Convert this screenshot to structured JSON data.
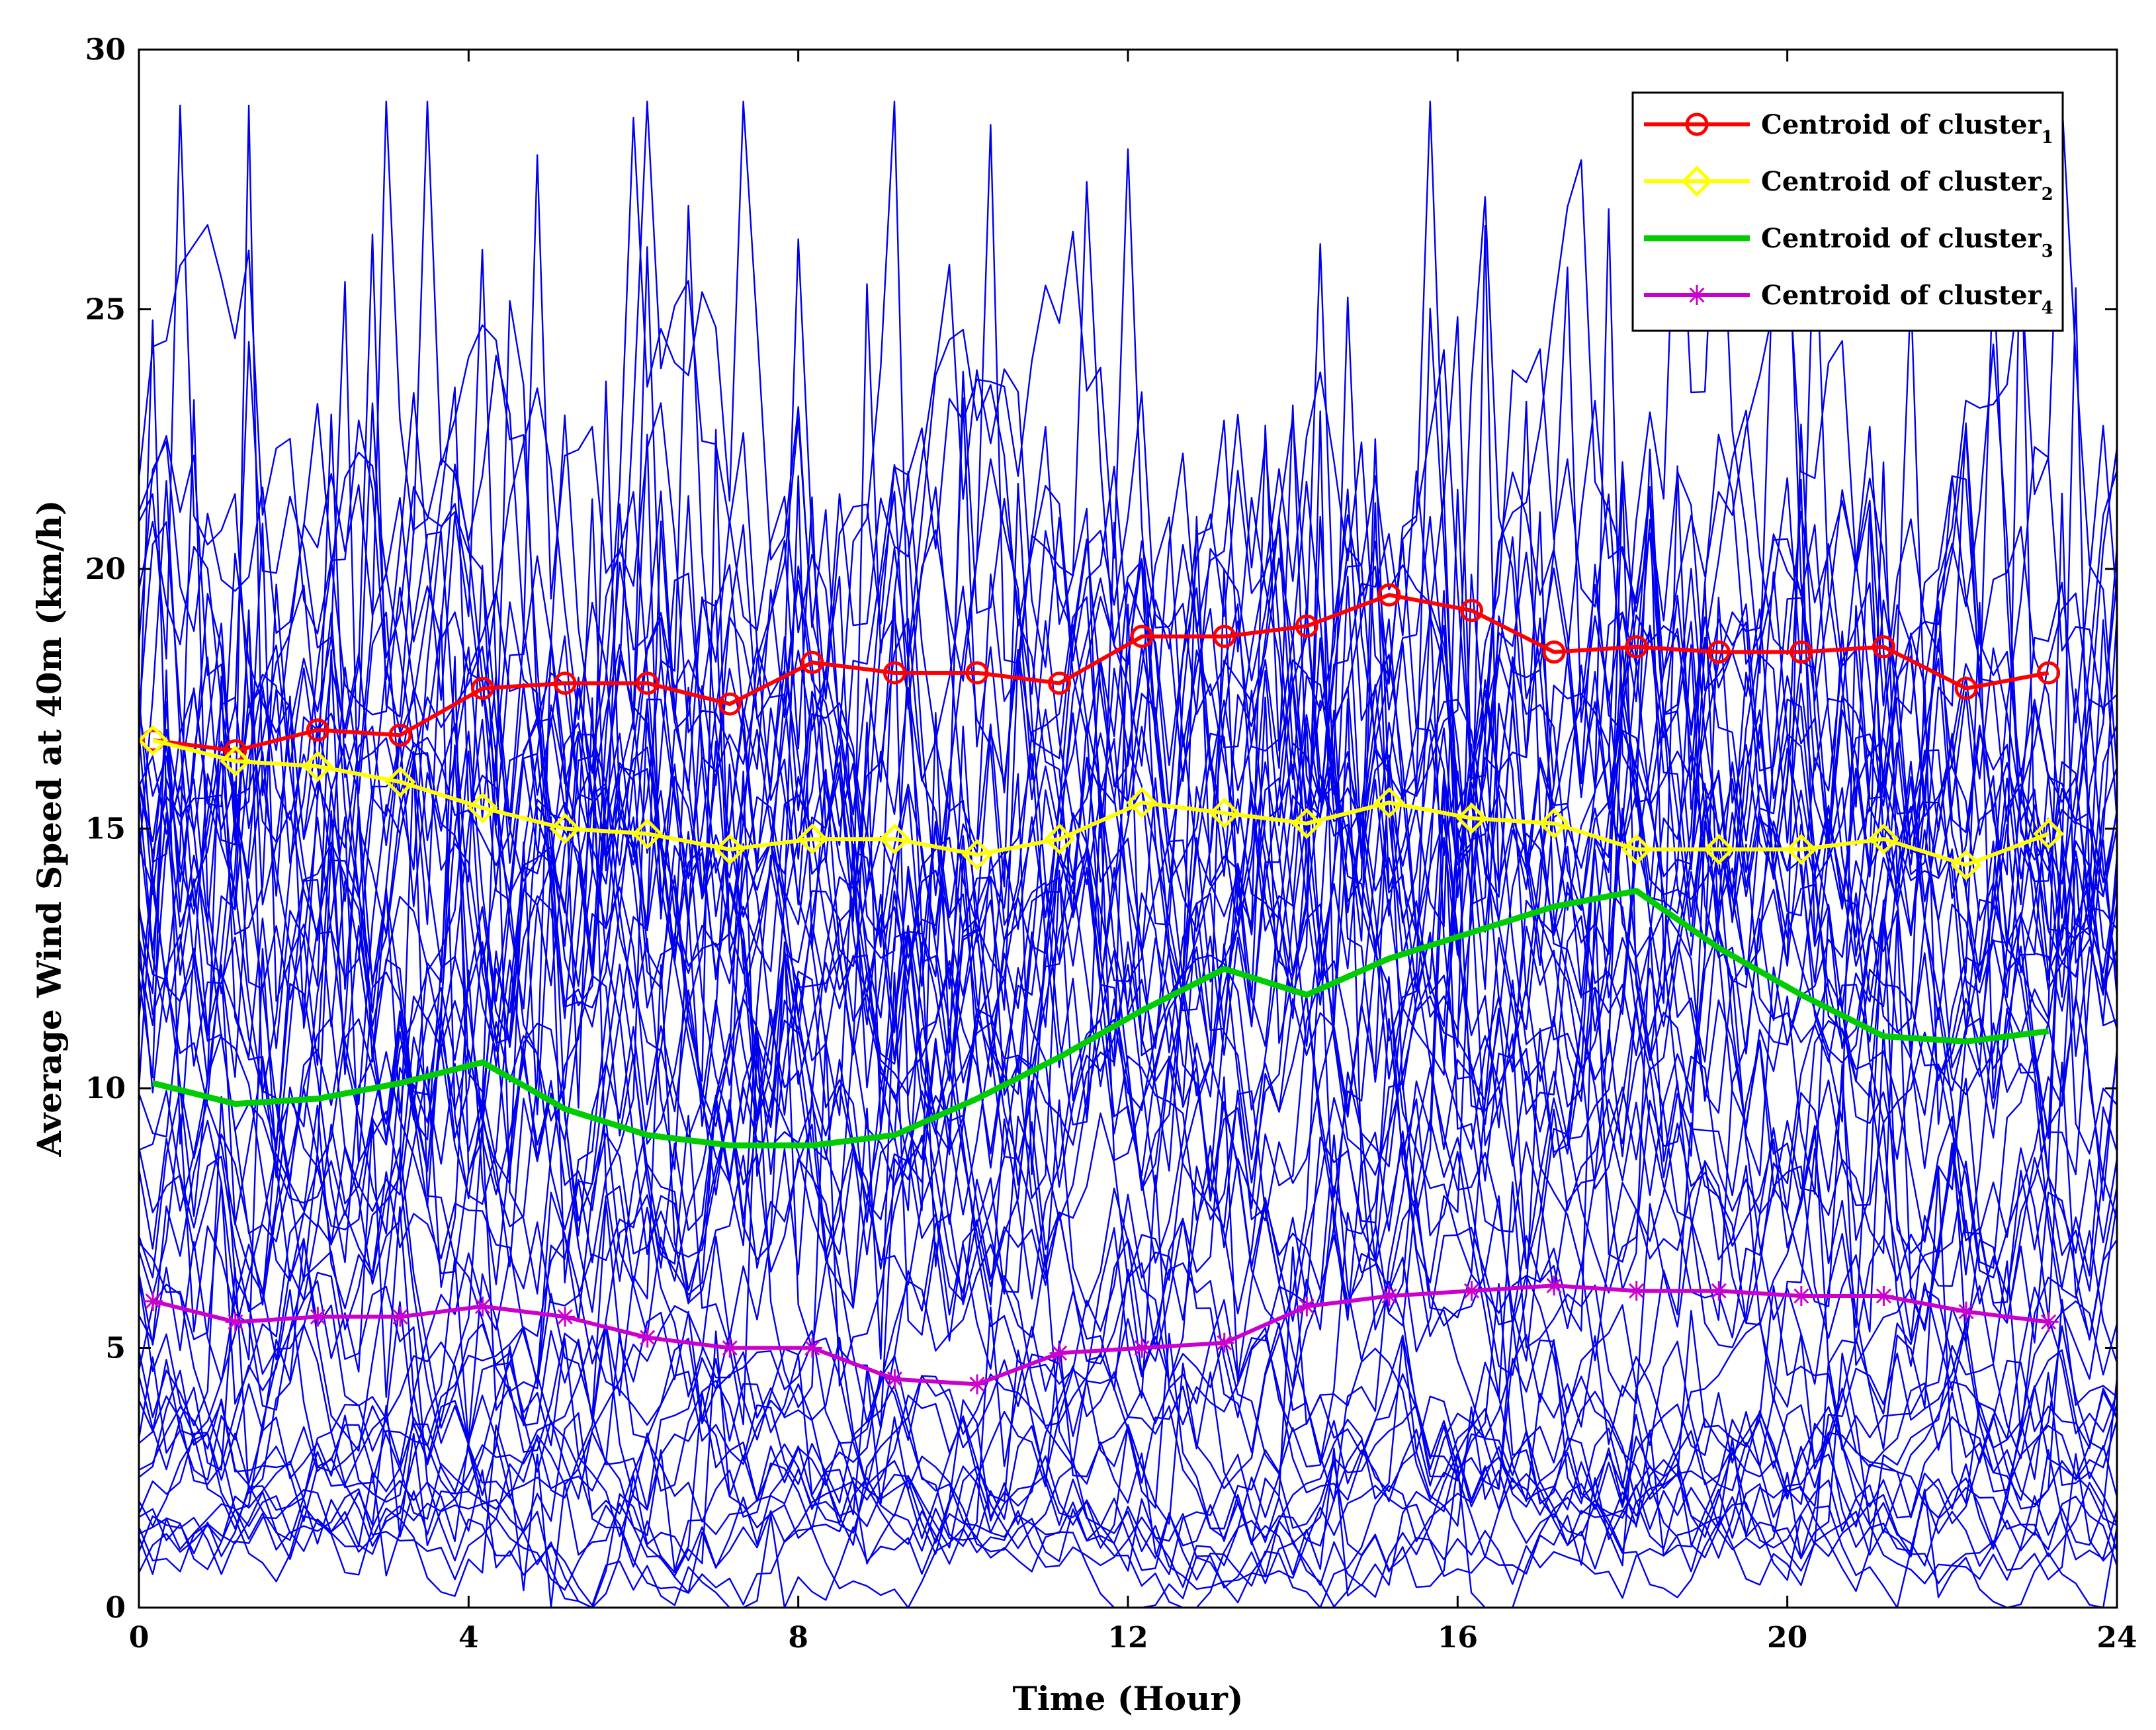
{
  "chart_data": {
    "type": "line",
    "title": "",
    "xlabel": "Time (Hour)",
    "ylabel": "Average Wind Speed at 40m (km/h)",
    "xlim": [
      0,
      24
    ],
    "ylim": [
      0,
      30
    ],
    "xticks": [
      0,
      4,
      8,
      12,
      16,
      20,
      24
    ],
    "yticks": [
      0,
      5,
      10,
      15,
      20,
      25,
      30
    ],
    "grid": false,
    "legend_position": "top-right",
    "x": [
      0.17,
      1.17,
      2.17,
      3.17,
      4.17,
      5.17,
      6.17,
      7.17,
      8.17,
      9.17,
      10.17,
      11.17,
      12.17,
      13.17,
      14.17,
      15.17,
      16.17,
      17.17,
      18.17,
      19.17,
      20.17,
      21.17,
      22.17,
      23.17
    ],
    "series": [
      {
        "name": "Centroid of cluster",
        "subscript": "1",
        "color": "#ff0000",
        "marker": "circle",
        "values": [
          16.7,
          16.5,
          16.9,
          16.8,
          17.7,
          17.8,
          17.8,
          17.4,
          18.2,
          18.0,
          18.0,
          17.8,
          18.7,
          18.7,
          18.9,
          19.5,
          19.2,
          18.4,
          18.5,
          18.4,
          18.4,
          18.5,
          17.7,
          18.0
        ]
      },
      {
        "name": "Centroid of cluster",
        "subscript": "2",
        "color": "#ffff00",
        "marker": "diamond",
        "values": [
          16.7,
          16.3,
          16.2,
          15.9,
          15.4,
          15.0,
          14.9,
          14.6,
          14.8,
          14.8,
          14.5,
          14.8,
          15.5,
          15.3,
          15.1,
          15.5,
          15.2,
          15.1,
          14.6,
          14.6,
          14.6,
          14.8,
          14.3,
          14.9
        ]
      },
      {
        "name": "Centroid of cluster",
        "subscript": "3",
        "color": "#00cc00",
        "marker": "none",
        "values": [
          10.1,
          9.7,
          9.8,
          10.1,
          10.5,
          9.6,
          9.1,
          8.9,
          8.9,
          9.1,
          9.8,
          10.6,
          11.5,
          12.3,
          11.8,
          12.5,
          13.0,
          13.5,
          13.8,
          12.7,
          11.8,
          11.0,
          10.9,
          11.1
        ]
      },
      {
        "name": "Centroid of cluster",
        "subscript": "4",
        "color": "#cc00cc",
        "marker": "star",
        "values": [
          5.9,
          5.5,
          5.6,
          5.6,
          5.8,
          5.6,
          5.2,
          5.0,
          5.0,
          4.4,
          4.3,
          4.9,
          5.0,
          5.1,
          5.8,
          6.0,
          6.1,
          6.2,
          6.1,
          6.1,
          6.0,
          6.0,
          5.7,
          5.5
        ]
      }
    ],
    "background_series": {
      "description_color": "#0000ee",
      "levels": [
        1.2,
        1.8,
        2.4,
        3.0,
        4.0,
        6.0,
        7.5,
        9.0,
        10.5,
        12.0,
        13.0,
        14.0,
        15.0,
        16.0,
        17.0,
        18.0,
        19.0
      ],
      "amplitudes": [
        1.0,
        1.2,
        1.4,
        1.6,
        2.0,
        2.6,
        3.0,
        3.4,
        3.6,
        3.8,
        4.0,
        4.2,
        4.2,
        4.4,
        4.6,
        4.8,
        5.0
      ]
    }
  }
}
